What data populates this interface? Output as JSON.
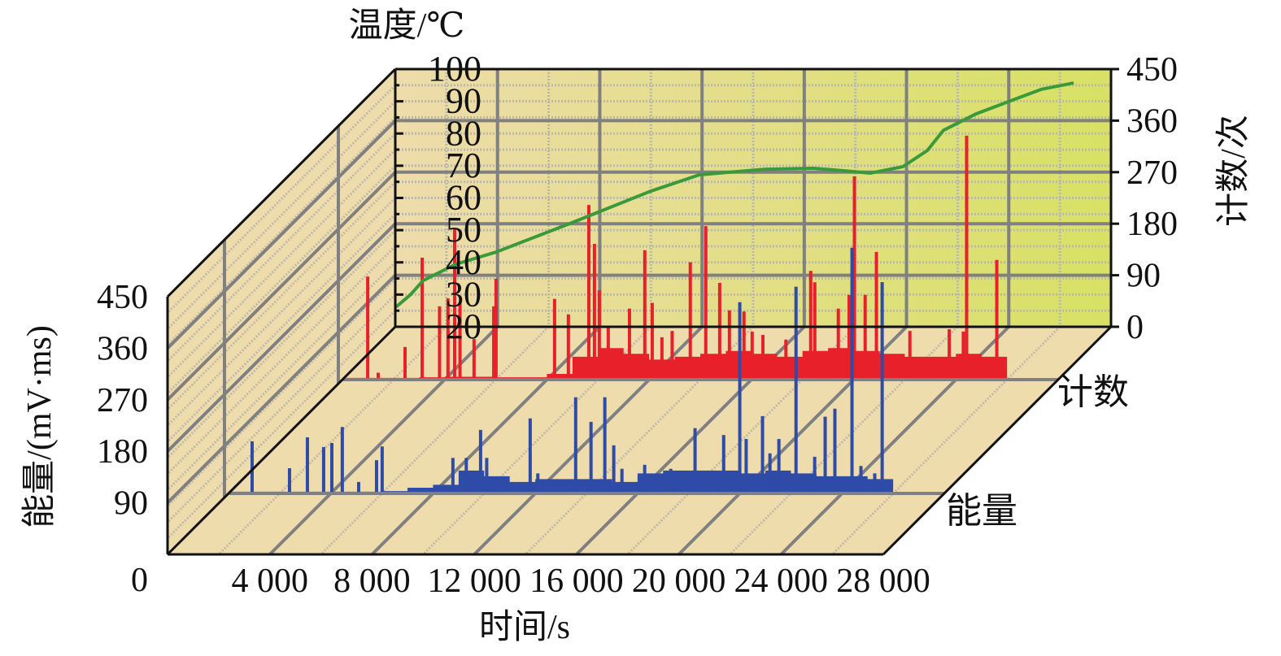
{
  "chart_data": {
    "type": "bar",
    "subtype": "3d-bar-with-line",
    "x_axis": {
      "label": "时间/s",
      "range": [
        0,
        28000
      ],
      "ticks": [
        4000,
        8000,
        12000,
        16000,
        20000,
        24000,
        28000
      ],
      "tick_labels": [
        "4 000",
        "8 000",
        "12 000",
        "16 000",
        "20 000",
        "24 000",
        "28 000"
      ]
    },
    "energy_axis": {
      "label": "能量/(mV·ms)",
      "range": [
        0,
        450
      ],
      "ticks": [
        0,
        90,
        180,
        270,
        360,
        450
      ],
      "tick_labels": [
        "0",
        "90",
        "180",
        "270",
        "360",
        "450"
      ]
    },
    "count_axis": {
      "label": "计数/次",
      "range": [
        0,
        450
      ],
      "ticks": [
        0,
        90,
        180,
        270,
        360,
        450
      ],
      "tick_labels": [
        "0",
        "90",
        "180",
        "270",
        "360",
        "450"
      ]
    },
    "temperature_axis": {
      "label": "温度/℃",
      "range": [
        20,
        100
      ],
      "ticks": [
        20,
        30,
        40,
        50,
        60,
        70,
        80,
        90,
        100
      ],
      "tick_labels": [
        "20",
        "30",
        "40",
        "50",
        "60",
        "70",
        "80",
        "90",
        "100"
      ]
    },
    "grid": true,
    "series": [
      {
        "name": "计数",
        "axis": "count",
        "color": "#e8202a",
        "background_step": 1000,
        "background": [
          3,
          3,
          3,
          4,
          5,
          5,
          4,
          4,
          10,
          40,
          55,
          45,
          35,
          40,
          45,
          50,
          45,
          40,
          50,
          55,
          50,
          45,
          40,
          40,
          45,
          40
        ],
        "peaks": [
          [
            990,
            180
          ],
          [
            1400,
            12
          ],
          [
            2450,
            57
          ],
          [
            3120,
            213
          ],
          [
            3800,
            128
          ],
          [
            4130,
            142
          ],
          [
            4390,
            263
          ],
          [
            4600,
            134
          ],
          [
            5150,
            71
          ],
          [
            5920,
            128
          ],
          [
            6010,
            176
          ],
          [
            8300,
            141
          ],
          [
            8840,
            114
          ],
          [
            9640,
            305
          ],
          [
            9860,
            237
          ],
          [
            10050,
            156
          ],
          [
            10400,
            92
          ],
          [
            11230,
            124
          ],
          [
            11830,
            226
          ],
          [
            12120,
            134
          ],
          [
            12500,
            74
          ],
          [
            12900,
            85
          ],
          [
            13610,
            205
          ],
          [
            14215,
            268
          ],
          [
            14760,
            169
          ],
          [
            15140,
            121
          ],
          [
            15710,
            119
          ],
          [
            16030,
            84
          ],
          [
            16450,
            78
          ],
          [
            17350,
            70
          ],
          [
            18320,
            190
          ],
          [
            18480,
            170
          ],
          [
            19400,
            124
          ],
          [
            19820,
            148
          ],
          [
            20030,
            355
          ],
          [
            20450,
            148
          ],
          [
            20890,
            223
          ],
          [
            22200,
            85
          ],
          [
            23740,
            88
          ],
          [
            24420,
            426
          ],
          [
            24290,
            84
          ],
          [
            25600,
            209
          ]
        ]
      },
      {
        "name": "能量",
        "axis": "energy",
        "color": "#2f4ba8",
        "background_step": 1000,
        "background": [
          3,
          3,
          3,
          3,
          3,
          3,
          4,
          10,
          15,
          40,
          30,
          20,
          25,
          25,
          25,
          20,
          35,
          40,
          40,
          40,
          35,
          40,
          35,
          30,
          30,
          25
        ],
        "peaks": [
          [
            922,
            91
          ],
          [
            2385,
            44
          ],
          [
            3085,
            98
          ],
          [
            3720,
            81
          ],
          [
            4040,
            88
          ],
          [
            4450,
            116
          ],
          [
            5090,
            20
          ],
          [
            5790,
            58
          ],
          [
            6010,
            82
          ],
          [
            8777,
            62
          ],
          [
            9300,
            62
          ],
          [
            9860,
            111
          ],
          [
            10100,
            62
          ],
          [
            11800,
            131
          ],
          [
            12100,
            35
          ],
          [
            13580,
            168
          ],
          [
            14180,
            125
          ],
          [
            14720,
            168
          ],
          [
            15070,
            84
          ],
          [
            15390,
            43
          ],
          [
            16280,
            50
          ],
          [
            17300,
            43
          ],
          [
            18250,
            114
          ],
          [
            19370,
            102
          ],
          [
            20000,
            334
          ],
          [
            20250,
            95
          ],
          [
            20890,
            135
          ],
          [
            21180,
            70
          ],
          [
            21530,
            95
          ],
          [
            22200,
            361
          ],
          [
            22930,
            64
          ],
          [
            23340,
            134
          ],
          [
            23720,
            148
          ],
          [
            24390,
            429
          ],
          [
            24740,
            48
          ],
          [
            25280,
            35
          ],
          [
            25570,
            369
          ]
        ]
      },
      {
        "name": "温度",
        "axis": "temperature",
        "color": "#3a9a3a",
        "type": "line",
        "points": [
          [
            0,
            26
          ],
          [
            127,
            26.8
          ],
          [
            600,
            30
          ],
          [
            1082,
            34.3
          ],
          [
            2355,
            39.4
          ],
          [
            3945,
            43.2
          ],
          [
            6810,
            52
          ],
          [
            9990,
            62.1
          ],
          [
            11900,
            67.2
          ],
          [
            14445,
            68.9
          ],
          [
            16355,
            69.2
          ],
          [
            17630,
            68.4
          ],
          [
            18580,
            67.7
          ],
          [
            19855,
            69.7
          ],
          [
            20810,
            74.7
          ],
          [
            21445,
            81
          ],
          [
            22720,
            86.1
          ],
          [
            23990,
            89.9
          ],
          [
            25265,
            93.7
          ],
          [
            26540,
            95.7
          ]
        ]
      }
    ],
    "row_labels": [
      "计数",
      "能量"
    ]
  }
}
